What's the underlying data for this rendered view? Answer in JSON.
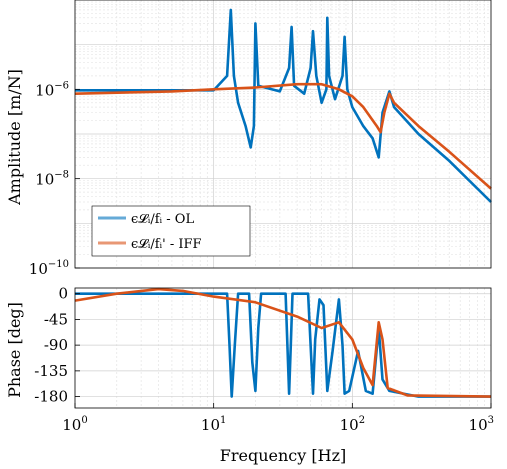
{
  "chart_data": [
    {
      "type": "line",
      "panel": "amplitude",
      "xscale": "log",
      "yscale": "log",
      "xlim": [
        1,
        1000
      ],
      "ylim": [
        1e-10,
        0.0001
      ],
      "ylabel": "Amplitude [m/N]",
      "yticks": [
        1e-10,
        1e-08,
        1e-06
      ],
      "ytick_labels": [
        {
          "base": "10",
          "exp": "−10"
        },
        {
          "base": "10",
          "exp": "−8"
        },
        {
          "base": "10",
          "exp": "−6"
        }
      ],
      "grid": true,
      "legend": {
        "placement": "lower-left"
      },
      "series": [
        {
          "name": "ϵ𝓛ᵢ/fᵢ - OL",
          "color": "#0072BD",
          "points": [
            [
              1,
              9.5e-07
            ],
            [
              10,
              9.5e-07
            ],
            [
              12.5,
              2e-06
            ],
            [
              13.3,
              6e-05
            ],
            [
              14,
              2e-06
            ],
            [
              15,
              5e-07
            ],
            [
              17,
              1.5e-07
            ],
            [
              18.5,
              5e-08
            ],
            [
              19.5,
              1.5e-07
            ],
            [
              20,
              3e-05
            ],
            [
              21,
              1.2e-06
            ],
            [
              30,
              9e-07
            ],
            [
              35,
              3e-06
            ],
            [
              36.5,
              2.5e-05
            ],
            [
              38,
              1.2e-06
            ],
            [
              45,
              8e-07
            ],
            [
              50,
              3e-06
            ],
            [
              52,
              2e-05
            ],
            [
              55,
              2e-06
            ],
            [
              60,
              5e-07
            ],
            [
              65,
              1e-06
            ],
            [
              66,
              4e-05
            ],
            [
              68,
              2e-06
            ],
            [
              75,
              6e-07
            ],
            [
              85,
              2e-06
            ],
            [
              88,
              1.5e-05
            ],
            [
              92,
              1e-06
            ],
            [
              100,
              4e-07
            ],
            [
              120,
              1.5e-07
            ],
            [
              140,
              8e-08
            ],
            [
              155,
              3e-08
            ],
            [
              165,
              3e-07
            ],
            [
              185,
              9e-07
            ],
            [
              200,
              4e-07
            ],
            [
              300,
              1e-07
            ],
            [
              500,
              2.5e-08
            ],
            [
              1000,
              3e-09
            ]
          ]
        },
        {
          "name": "ϵ𝓛ᵢ/fᵢ' - IFF",
          "color": "#D95319",
          "points": [
            [
              1,
              8e-07
            ],
            [
              5,
              9e-07
            ],
            [
              10,
              1e-06
            ],
            [
              20,
              1.1e-06
            ],
            [
              40,
              1.3e-06
            ],
            [
              60,
              1.3e-06
            ],
            [
              80,
              1e-06
            ],
            [
              100,
              7e-07
            ],
            [
              120,
              4e-07
            ],
            [
              150,
              1.5e-07
            ],
            [
              160,
              1.1e-07
            ],
            [
              170,
              3e-07
            ],
            [
              185,
              8e-07
            ],
            [
              200,
              5e-07
            ],
            [
              300,
              1.5e-07
            ],
            [
              500,
              4e-08
            ],
            [
              1000,
              6e-09
            ]
          ]
        }
      ]
    },
    {
      "type": "line",
      "panel": "phase",
      "xscale": "log",
      "xlim": [
        1,
        1000
      ],
      "ylim": [
        -200,
        10
      ],
      "xlabel": "Frequency [Hz]",
      "ylabel": "Phase [deg]",
      "yticks": [
        0,
        -45,
        -90,
        -135,
        -180
      ],
      "ytick_labels": [
        "0",
        "-45",
        "-90",
        "-135",
        "-180"
      ],
      "xticks": [
        1,
        10,
        100,
        1000
      ],
      "xtick_labels": [
        {
          "base": "10",
          "exp": "0"
        },
        {
          "base": "10",
          "exp": "1"
        },
        {
          "base": "10",
          "exp": "2"
        },
        {
          "base": "10",
          "exp": "3"
        }
      ],
      "grid": true,
      "series": [
        {
          "name": "ϵ𝓛ᵢ/fᵢ - OL",
          "color": "#0072BD",
          "points": [
            [
              1,
              0
            ],
            [
              12.5,
              0
            ],
            [
              13,
              -90
            ],
            [
              13.5,
              -180
            ],
            [
              14.2,
              -90
            ],
            [
              15,
              0
            ],
            [
              18,
              0
            ],
            [
              19,
              -120
            ],
            [
              20,
              -170
            ],
            [
              21,
              -60
            ],
            [
              22,
              0
            ],
            [
              33,
              0
            ],
            [
              34,
              -90
            ],
            [
              35,
              -175
            ],
            [
              36,
              -90
            ],
            [
              37,
              0
            ],
            [
              48,
              0
            ],
            [
              50,
              -90
            ],
            [
              52,
              -175
            ],
            [
              54,
              -80
            ],
            [
              58,
              -10
            ],
            [
              62,
              -20
            ],
            [
              66,
              -170
            ],
            [
              72,
              -100
            ],
            [
              80,
              -10
            ],
            [
              85,
              -90
            ],
            [
              88,
              -175
            ],
            [
              95,
              -170
            ],
            [
              110,
              -100
            ],
            [
              125,
              -170
            ],
            [
              140,
              -175
            ],
            [
              155,
              -60
            ],
            [
              165,
              -150
            ],
            [
              185,
              -170
            ],
            [
              300,
              -180
            ],
            [
              1000,
              -180
            ]
          ]
        },
        {
          "name": "ϵ𝓛ᵢ/fᵢ' - IFF",
          "color": "#D95319",
          "points": [
            [
              1,
              -12
            ],
            [
              2,
              0
            ],
            [
              4,
              8
            ],
            [
              6,
              5
            ],
            [
              10,
              -5
            ],
            [
              20,
              -15
            ],
            [
              40,
              -40
            ],
            [
              60,
              -60
            ],
            [
              80,
              -50
            ],
            [
              100,
              -80
            ],
            [
              120,
              -130
            ],
            [
              140,
              -160
            ],
            [
              155,
              -50
            ],
            [
              165,
              -80
            ],
            [
              180,
              -165
            ],
            [
              250,
              -178
            ],
            [
              1000,
              -180
            ]
          ]
        }
      ]
    }
  ]
}
